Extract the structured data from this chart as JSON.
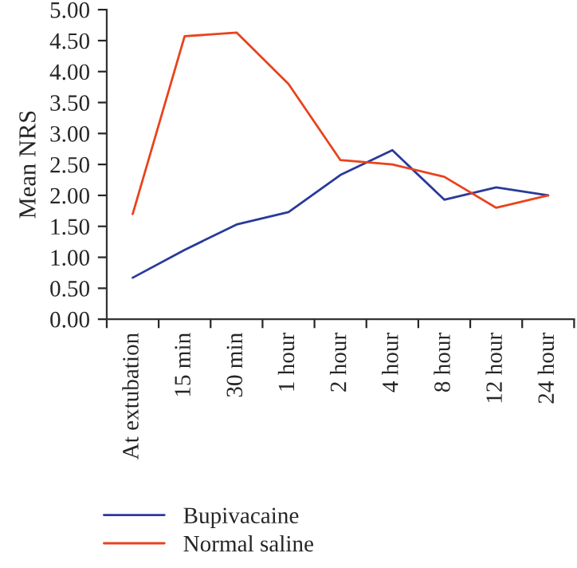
{
  "chart_data": {
    "type": "line",
    "ylabel": "Mean NRS",
    "categories": [
      "At extubation",
      "15 min",
      "30 min",
      "1 hour",
      "2 hour",
      "4 hour",
      "8 hour",
      "12 hour",
      "24 hour"
    ],
    "series": [
      {
        "name": "Bupivacaine",
        "color": "#2a3a9a",
        "values": [
          0.67,
          1.12,
          1.53,
          1.73,
          2.33,
          2.73,
          1.93,
          2.13,
          2.0
        ]
      },
      {
        "name": "Normal saline",
        "color": "#e8431c",
        "values": [
          1.7,
          4.57,
          4.63,
          3.8,
          2.57,
          2.5,
          2.3,
          1.8,
          2.0
        ]
      }
    ],
    "ylim": [
      0,
      5
    ],
    "yticks": [
      {
        "value": 0,
        "label": "0.00"
      },
      {
        "value": 0.5,
        "label": "0.50"
      },
      {
        "value": 1,
        "label": "1.00"
      },
      {
        "value": 1.5,
        "label": "1.50"
      },
      {
        "value": 2,
        "label": "2.00"
      },
      {
        "value": 2.5,
        "label": "2.50"
      },
      {
        "value": 3,
        "label": "3.00"
      },
      {
        "value": 3.5,
        "label": "3.50"
      },
      {
        "value": 4,
        "label": "4.00"
      },
      {
        "value": 4.5,
        "label": "4.50"
      },
      {
        "value": 5,
        "label": "5.00"
      }
    ],
    "grid": false,
    "legend": "bottom left",
    "marker": "none",
    "line_style": "solid"
  }
}
